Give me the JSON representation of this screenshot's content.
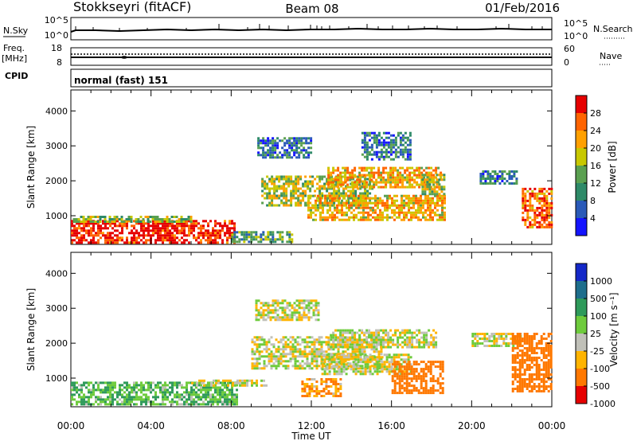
{
  "header": {
    "station": "Stokkseyri (fitACF)",
    "beam": "Beam 08",
    "date": "01/Feb/2016"
  },
  "status_panels": {
    "nsky_label": "N.Sky",
    "nsky_ticks": [
      "10^5",
      "10^0"
    ],
    "nsearch_label": "N.Search",
    "nsearch_ticks": [
      "10^5",
      "10^0"
    ],
    "freq_label": "Freq.",
    "freq_unit": "[MHz]",
    "freq_ticks": [
      "18",
      "8"
    ],
    "nave_label": "Nave",
    "nave_ticks": [
      "60",
      "0"
    ],
    "cpid_label": "CPID",
    "cpid_text": "normal (fast) 151"
  },
  "chart_data": [
    {
      "type": "heatmap",
      "panel": "power",
      "title": "",
      "xlabel": "Time UT",
      "ylabel": "Slant Range [km]",
      "xlim_hours": [
        0,
        24
      ],
      "x_ticks": [
        "00:00",
        "04:00",
        "08:00",
        "12:00",
        "16:00",
        "20:00",
        "00:00"
      ],
      "ylim_km": [
        180,
        4600
      ],
      "y_ticks": [
        1000,
        2000,
        3000,
        4000
      ],
      "colorbar": {
        "label": "Power [dB]",
        "ticks": [
          "4",
          "8",
          "12",
          "16",
          "20",
          "24",
          "28"
        ],
        "range": [
          0,
          30
        ],
        "colors": [
          "#1414ff",
          "#2a5ab8",
          "#2e8a68",
          "#5aa050",
          "#c8c800",
          "#ffa000",
          "#ff6400",
          "#e60000"
        ]
      },
      "echo_regions": [
        {
          "t": [
            0.0,
            8.2
          ],
          "r": [
            250,
            880
          ],
          "value": 28
        },
        {
          "t": [
            0.1,
            6.0
          ],
          "r": [
            850,
            1000
          ],
          "value": 14
        },
        {
          "t": [
            8.0,
            11.0
          ],
          "r": [
            250,
            560
          ],
          "value": 12
        },
        {
          "t": [
            9.3,
            12.0
          ],
          "r": [
            2700,
            3250
          ],
          "value": 8
        },
        {
          "t": [
            9.5,
            15.0
          ],
          "r": [
            1300,
            2150
          ],
          "value": 16
        },
        {
          "t": [
            11.8,
            18.7
          ],
          "r": [
            900,
            1600
          ],
          "value": 20
        },
        {
          "t": [
            12.8,
            18.5
          ],
          "r": [
            1800,
            2400
          ],
          "value": 20
        },
        {
          "t": [
            14.5,
            17.0
          ],
          "r": [
            2600,
            3400
          ],
          "value": 8
        },
        {
          "t": [
            17.5,
            18.6
          ],
          "r": [
            1600,
            2200
          ],
          "value": 16
        },
        {
          "t": [
            20.4,
            22.2
          ],
          "r": [
            1900,
            2300
          ],
          "value": 8
        },
        {
          "t": [
            22.5,
            24.0
          ],
          "r": [
            700,
            1800
          ],
          "value": 24
        }
      ]
    },
    {
      "type": "heatmap",
      "panel": "velocity",
      "title": "",
      "xlabel": "Time UT",
      "ylabel": "Slant Range [km]",
      "xlim_hours": [
        0,
        24
      ],
      "x_ticks": [
        "00:00",
        "04:00",
        "08:00",
        "12:00",
        "16:00",
        "20:00",
        "00:00"
      ],
      "ylim_km": [
        180,
        4600
      ],
      "y_ticks": [
        1000,
        2000,
        3000,
        4000
      ],
      "colorbar": {
        "label": "Velocity [m s⁻¹]",
        "ticks": [
          "1000",
          "500",
          "100",
          "25",
          "-25",
          "-100",
          "-500",
          "-1000"
        ],
        "colors": [
          "#1428c8",
          "#1e6e8c",
          "#2e9a5a",
          "#6ecb3c",
          "#c0c0b8",
          "#ffb400",
          "#ff7800",
          "#e60000"
        ]
      },
      "echo_regions": [
        {
          "t": [
            0.0,
            8.3
          ],
          "r": [
            250,
            900
          ],
          "value": 100
        },
        {
          "t": [
            6.0,
            9.8
          ],
          "r": [
            760,
            960
          ],
          "value": 0
        },
        {
          "t": [
            9.2,
            12.3
          ],
          "r": [
            2700,
            3250
          ],
          "value": 0
        },
        {
          "t": [
            9.0,
            15.5
          ],
          "r": [
            1300,
            2200
          ],
          "value": 0
        },
        {
          "t": [
            12.8,
            18.2
          ],
          "r": [
            1900,
            2400
          ],
          "value": 0
        },
        {
          "t": [
            12.5,
            17.0
          ],
          "r": [
            1100,
            1700
          ],
          "value": 0
        },
        {
          "t": [
            11.5,
            13.5
          ],
          "r": [
            500,
            1000
          ],
          "value": -100
        },
        {
          "t": [
            16.0,
            18.6
          ],
          "r": [
            550,
            1500
          ],
          "value": -300
        },
        {
          "t": [
            20.0,
            22.4
          ],
          "r": [
            1900,
            2300
          ],
          "value": 0
        },
        {
          "t": [
            22.0,
            24.0
          ],
          "r": [
            600,
            2300
          ],
          "value": -300
        }
      ]
    }
  ]
}
